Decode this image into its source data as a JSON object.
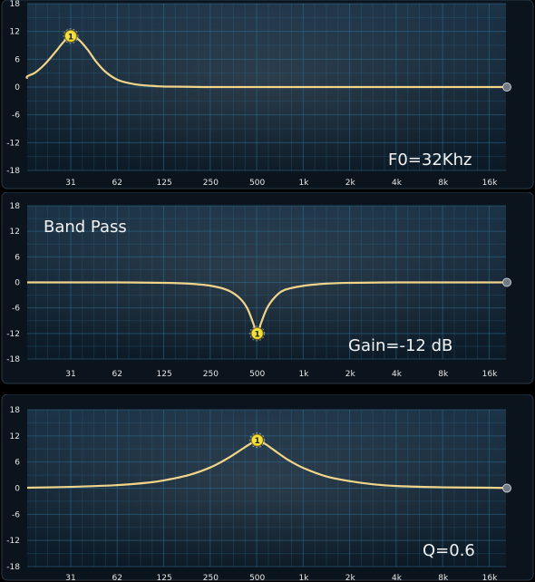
{
  "colors": {
    "background": "#000000",
    "plot_top": "#1c3346",
    "plot_bottom": "#0c1a26",
    "grid": "#2e6e92",
    "curve": "#f0d48a",
    "node": "#f3e13a",
    "text": "#e6e6e6"
  },
  "chart_data": [
    {
      "type": "line",
      "title": "",
      "annotations": [
        "F0=32Khz"
      ],
      "x_ticks": [
        "31",
        "62",
        "125",
        "250",
        "500",
        "1k",
        "2k",
        "4k",
        "8k",
        "16k"
      ],
      "y_ticks": [
        "18",
        "12",
        "6",
        "0",
        "-6",
        "-12",
        "-18"
      ],
      "ylim": [
        -18,
        18
      ],
      "grid": true,
      "node": {
        "label": "1",
        "freq_hz": 31,
        "gain_db": 11
      },
      "curve": {
        "freq_hz": [
          14,
          16,
          18,
          20,
          22,
          25,
          28,
          31,
          35,
          40,
          45,
          52,
          62,
          75,
          90,
          110,
          125,
          180,
          250,
          500,
          1000,
          2000,
          4000,
          8000,
          16000,
          20000
        ],
        "gain_db": [
          1.8,
          2.3,
          3.0,
          4.2,
          5.6,
          7.8,
          9.8,
          11,
          10.2,
          8.0,
          5.6,
          3.3,
          1.6,
          0.8,
          0.4,
          0.2,
          0.1,
          0.05,
          0,
          0,
          0,
          0,
          0,
          0,
          0,
          0
        ]
      }
    },
    {
      "type": "line",
      "title": "",
      "annotations": [
        "Band Pass",
        "Gain=-12  dB"
      ],
      "x_ticks": [
        "31",
        "62",
        "125",
        "250",
        "500",
        "1k",
        "2k",
        "4k",
        "8k",
        "16k"
      ],
      "y_ticks": [
        "18",
        "12",
        "6",
        "0",
        "-6",
        "-12",
        "-18"
      ],
      "ylim": [
        -18,
        18
      ],
      "grid": true,
      "node": {
        "label": "1",
        "freq_hz": 500,
        "gain_db": -12
      },
      "curve": {
        "freq_hz": [
          14,
          31,
          62,
          125,
          180,
          250,
          320,
          380,
          430,
          470,
          500,
          530,
          580,
          650,
          750,
          1000,
          1400,
          2000,
          4000,
          8000,
          16000,
          20000
        ],
        "gain_db": [
          0,
          0,
          0,
          -0.1,
          -0.3,
          -0.8,
          -1.8,
          -3.5,
          -6.0,
          -9.5,
          -12,
          -9.5,
          -6.0,
          -3.5,
          -1.8,
          -0.8,
          -0.3,
          -0.1,
          0,
          0,
          0,
          0
        ]
      }
    },
    {
      "type": "line",
      "title": "",
      "annotations": [
        "Q=0.6"
      ],
      "x_ticks": [
        "31",
        "62",
        "125",
        "250",
        "500",
        "1k",
        "2k",
        "4k",
        "8k",
        "16k"
      ],
      "y_ticks": [
        "18",
        "12",
        "6",
        "0",
        "-6",
        "-12",
        "-18"
      ],
      "ylim": [
        -18,
        18
      ],
      "grid": true,
      "node": {
        "label": "1",
        "freq_hz": 500,
        "gain_db": 11
      },
      "curve": {
        "freq_hz": [
          14,
          31,
          62,
          100,
          125,
          180,
          250,
          320,
          400,
          460,
          500,
          560,
          650,
          800,
          1000,
          1400,
          2000,
          2800,
          4000,
          8000,
          16000,
          20000
        ],
        "gain_db": [
          0.1,
          0.3,
          0.7,
          1.3,
          1.8,
          3.0,
          4.8,
          6.8,
          9.0,
          10.4,
          11,
          10.2,
          8.6,
          6.4,
          4.6,
          2.7,
          1.6,
          0.9,
          0.5,
          0.2,
          0.1,
          0.05
        ]
      }
    }
  ]
}
